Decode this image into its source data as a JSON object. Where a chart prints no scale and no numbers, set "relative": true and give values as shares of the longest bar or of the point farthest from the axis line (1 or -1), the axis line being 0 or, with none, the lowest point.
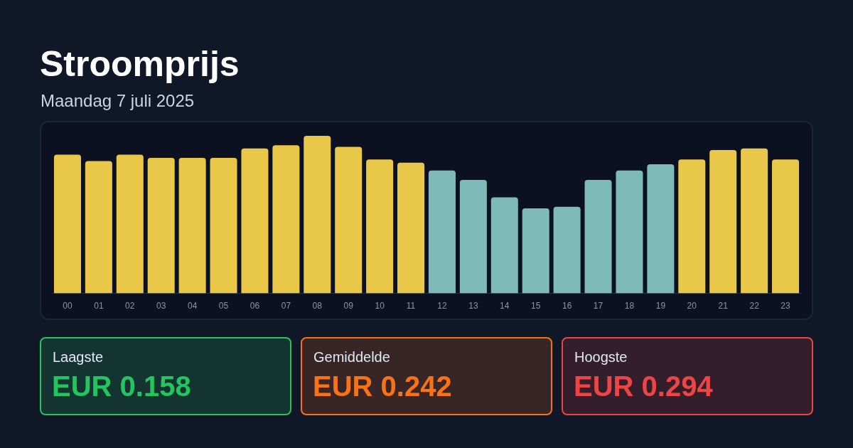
{
  "chart_data": [
    {
      "type": "bar",
      "title": "Stroomprijs",
      "subtitle": "Maandag 7 juli 2025",
      "categories": [
        "00",
        "01",
        "02",
        "03",
        "04",
        "05",
        "06",
        "07",
        "08",
        "09",
        "10",
        "11",
        "12",
        "13",
        "14",
        "15",
        "16",
        "17",
        "18",
        "19",
        "20",
        "21",
        "22",
        "23"
      ],
      "values": [
        0.88,
        0.84,
        0.88,
        0.86,
        0.86,
        0.86,
        0.92,
        0.94,
        1,
        0.93,
        0.85,
        0.83,
        0.78,
        0.72,
        0.61,
        0.54,
        0.55,
        0.72,
        0.78,
        0.82,
        0.85,
        0.91,
        0.92,
        0.85
      ],
      "colors": [
        "#e9c748",
        "#e9c748",
        "#e9c748",
        "#e9c748",
        "#e9c748",
        "#e9c748",
        "#e9c748",
        "#e9c748",
        "#e9c748",
        "#e9c748",
        "#e9c748",
        "#e9c748",
        "#7ebab9",
        "#7ebab9",
        "#7ebab9",
        "#7ebab9",
        "#7ebab9",
        "#7ebab9",
        "#7ebab9",
        "#7ebab9",
        "#e9c748",
        "#e9c748",
        "#e9c748",
        "#e9c748"
      ],
      "relative": true
    },
    {
      "type": "other",
      "title": "Laagste",
      "annotations": [
        "EUR 0.158"
      ],
      "color": "#22c55e"
    },
    {
      "type": "other",
      "title": "Gemiddelde",
      "annotations": [
        "EUR 0.242"
      ],
      "color": "#f97316"
    },
    {
      "type": "other",
      "title": "Hoogste",
      "annotations": [
        "EUR 0.294"
      ],
      "color": "#ef4444"
    }
  ]
}
